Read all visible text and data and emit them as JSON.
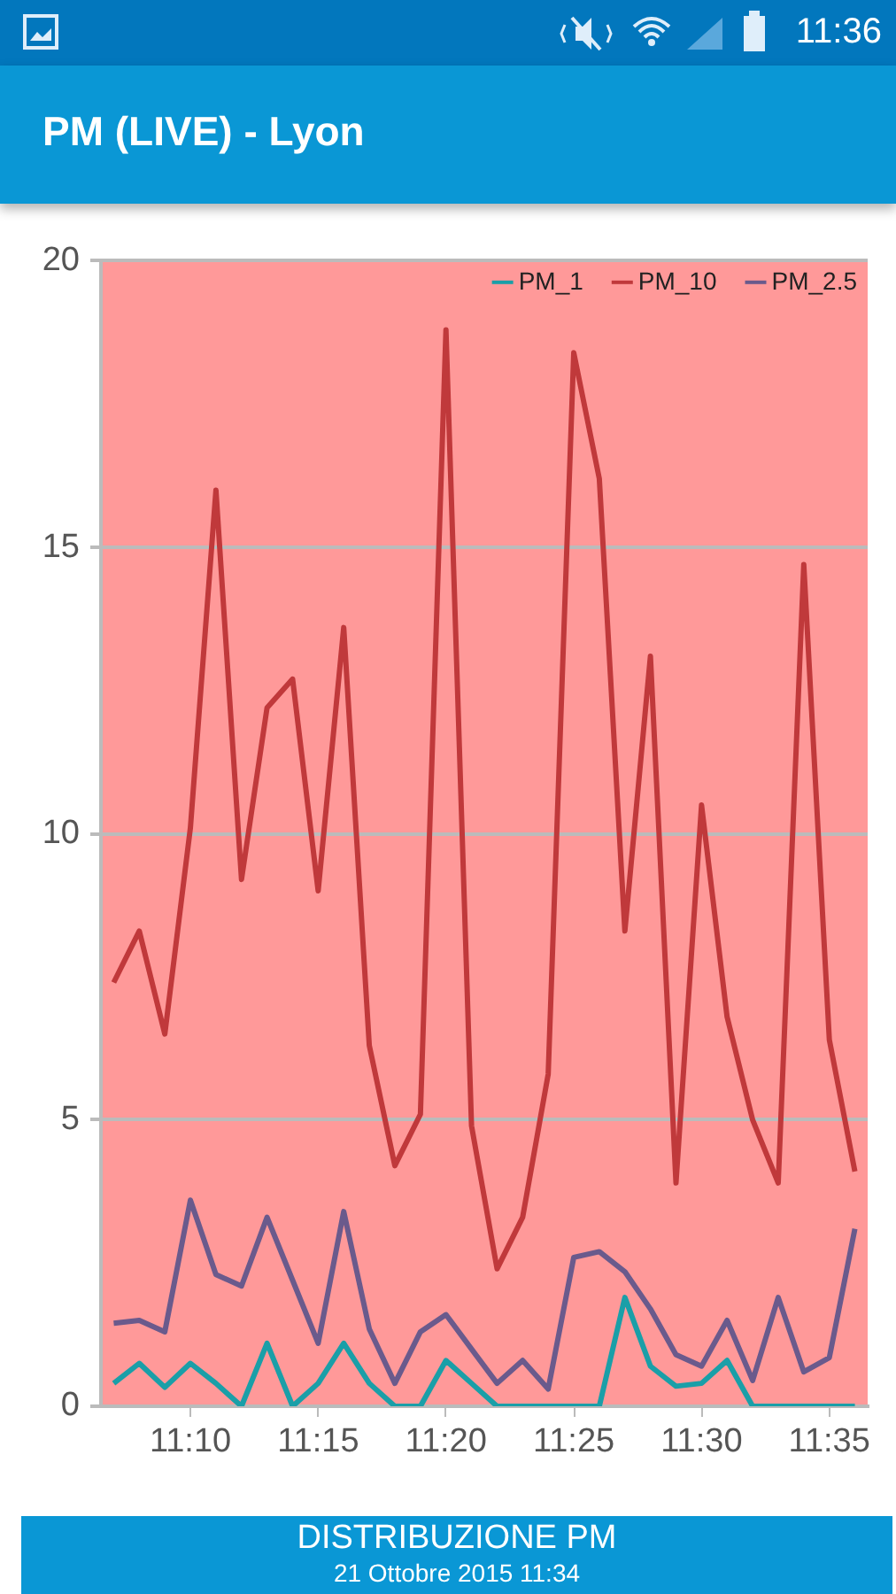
{
  "chart_data": {
    "type": "line",
    "title": "PM (LIVE) - Lyon",
    "annotations": [
      "11:36",
      "DISTRIBUZIONE PM",
      "21 Ottobre 2015 11:34"
    ],
    "x": [
      "2015-10-21T11:07",
      "2015-10-21T11:08",
      "2015-10-21T11:09",
      "2015-10-21T11:10",
      "2015-10-21T11:11",
      "2015-10-21T11:12",
      "2015-10-21T11:13",
      "2015-10-21T11:14",
      "2015-10-21T11:15",
      "2015-10-21T11:16",
      "2015-10-21T11:17",
      "2015-10-21T11:18",
      "2015-10-21T11:19",
      "2015-10-21T11:20",
      "2015-10-21T11:21",
      "2015-10-21T11:22",
      "2015-10-21T11:23",
      "2015-10-21T11:24",
      "2015-10-21T11:25",
      "2015-10-21T11:26",
      "2015-10-21T11:27",
      "2015-10-21T11:28",
      "2015-10-21T11:29",
      "2015-10-21T11:30",
      "2015-10-21T11:31",
      "2015-10-21T11:32",
      "2015-10-21T11:33",
      "2015-10-21T11:34",
      "2015-10-21T11:35",
      "2015-10-21T11:36"
    ],
    "series": [
      {
        "name": "PM_1",
        "color": "#1a9fa8",
        "values": [
          0.4,
          0.75,
          0.33,
          0.75,
          0.4,
          0,
          1.1,
          0,
          0.4,
          1.1,
          0.4,
          0,
          0,
          0.8,
          0.4,
          0,
          0,
          0,
          0,
          0,
          1.9,
          0.7,
          0.35,
          0.4,
          0.8,
          0,
          0,
          0,
          0,
          0
        ]
      },
      {
        "name": "PM_10",
        "color": "#c0393b",
        "values": [
          7.4,
          8.3,
          6.5,
          10.1,
          16.0,
          9.2,
          12.2,
          12.7,
          9.0,
          13.6,
          6.3,
          4.2,
          5.1,
          18.8,
          4.9,
          2.4,
          3.3,
          5.8,
          18.4,
          16.2,
          8.3,
          13.1,
          3.9,
          10.5,
          6.8,
          5.0,
          3.9,
          14.7,
          6.4,
          4.1
        ]
      },
      {
        "name": "PM_2.5",
        "color": "#6a5a8c",
        "values": [
          1.45,
          1.5,
          1.3,
          3.6,
          2.3,
          2.1,
          3.3,
          2.2,
          1.1,
          3.4,
          1.35,
          0.4,
          1.3,
          1.6,
          1.0,
          0.4,
          0.8,
          0.3,
          2.6,
          2.7,
          2.35,
          1.7,
          0.9,
          0.7,
          1.5,
          0.45,
          1.9,
          0.6,
          0.85,
          3.1
        ]
      }
    ],
    "xlim": [
      "2015-10-21T11:06:30",
      "2015-10-21T11:36:30"
    ],
    "xticks": [
      {
        "value": "2015-10-21T11:10",
        "label": "11:10"
      },
      {
        "value": "2015-10-21T11:15",
        "label": "11:15"
      },
      {
        "value": "2015-10-21T11:20",
        "label": "11:20"
      },
      {
        "value": "2015-10-21T11:25",
        "label": "11:25"
      },
      {
        "value": "2015-10-21T11:30",
        "label": "11:30"
      },
      {
        "value": "2015-10-21T11:35",
        "label": "11:35"
      }
    ],
    "ylim": [
      0,
      20
    ],
    "yticks": [
      0,
      5,
      10,
      15,
      20
    ],
    "grid": "y",
    "legend": "top right",
    "marker": "none",
    "line_style": "solid"
  }
}
